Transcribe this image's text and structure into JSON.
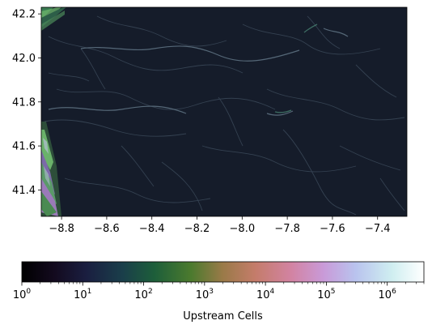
{
  "chart_data": {
    "type": "heatmap",
    "title": "",
    "xlabel": "",
    "ylabel": "",
    "xlim": [
      -8.89,
      -7.27
    ],
    "ylim": [
      41.28,
      42.23
    ],
    "x_ticks": [
      -8.8,
      -8.6,
      -8.4,
      -8.2,
      -8.0,
      -7.8,
      -7.6,
      -7.4
    ],
    "x_tick_labels": [
      "−8.8",
      "−8.6",
      "−8.4",
      "−8.2",
      "−8.0",
      "−7.8",
      "−7.6",
      "−7.4"
    ],
    "y_ticks": [
      41.4,
      41.6,
      41.8,
      42.0,
      42.2
    ],
    "y_tick_labels": [
      "41.4",
      "41.6",
      "41.8",
      "42.0",
      "42.2"
    ],
    "grid": false,
    "colormap": "cubehelix",
    "colorbar": {
      "label": "Upstream Cells",
      "orientation": "horizontal",
      "placement": "bottom",
      "scale": "log",
      "range": [
        1,
        4000000
      ],
      "ticks": [
        1,
        10,
        100,
        1000,
        10000,
        100000,
        1000000
      ],
      "tick_labels": [
        {
          "base": "10",
          "exp": "0"
        },
        {
          "base": "10",
          "exp": "1"
        },
        {
          "base": "10",
          "exp": "2"
        },
        {
          "base": "10",
          "exp": "3"
        },
        {
          "base": "10",
          "exp": "4"
        },
        {
          "base": "10",
          "exp": "5"
        },
        {
          "base": "10",
          "exp": "6"
        }
      ]
    },
    "colors": {
      "background_cells": "#151c2a",
      "drainage_lines": "#3a4858",
      "main_channels": "#5c7080",
      "edge_stripe_a": "#3a7c52",
      "edge_stripe_b": "#7b6aa8",
      "edge_stripe_c": "#6ab26a"
    }
  }
}
